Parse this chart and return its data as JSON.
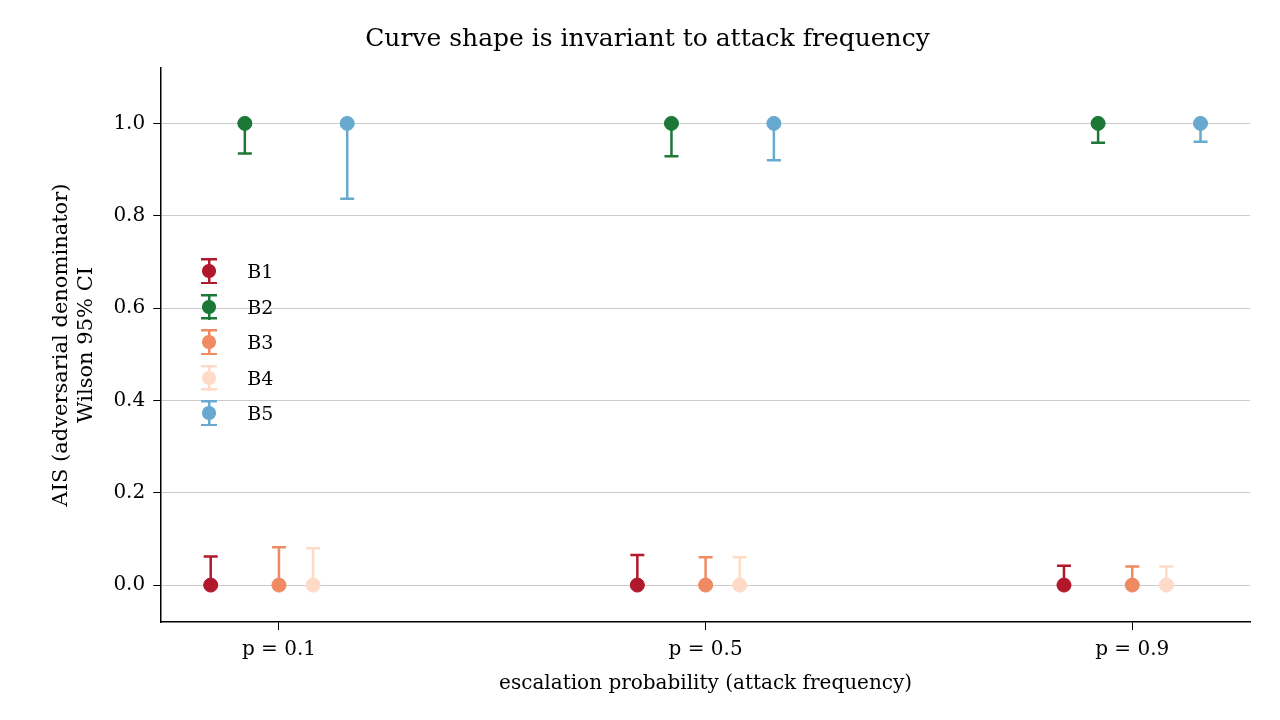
{
  "chart_data": {
    "type": "scatter",
    "title": "Curve shape is invariant to attack frequency",
    "xlabel": "escalation probability (attack frequency)",
    "ylabel": "AIS (adversarial denominator)\nWilson 95% CI",
    "categories": [
      "p = 0.1",
      "p = 0.5",
      "p = 0.9"
    ],
    "series": [
      {
        "name": "B1",
        "color": "#b2182b",
        "values": [
          0,
          0,
          0
        ],
        "errors": [
          [
            0,
            0.062
          ],
          [
            0,
            0.065
          ],
          [
            0,
            0.042
          ]
        ]
      },
      {
        "name": "B2",
        "color": "#1b7837",
        "values": [
          1,
          1,
          1
        ],
        "errors": [
          [
            0.935,
            1
          ],
          [
            0.929,
            1
          ],
          [
            0.958,
            1
          ]
        ]
      },
      {
        "name": "B3",
        "color": "#ef8a62",
        "values": [
          0,
          0,
          0
        ],
        "errors": [
          [
            0,
            0.082
          ],
          [
            0,
            0.06
          ],
          [
            0,
            0.04
          ]
        ]
      },
      {
        "name": "B4",
        "color": "#fddbc7",
        "values": [
          0,
          0,
          0
        ],
        "errors": [
          [
            0,
            0.08
          ],
          [
            0,
            0.06
          ],
          [
            0,
            0.04
          ]
        ]
      },
      {
        "name": "B5",
        "color": "#67a9cf",
        "values": [
          1,
          1,
          1
        ],
        "errors": [
          [
            0.837,
            1
          ],
          [
            0.92,
            1
          ],
          [
            0.96,
            1
          ]
        ]
      }
    ],
    "ylim": [
      -0.08,
      1.12
    ],
    "yticks": [
      {
        "value": 0,
        "label": "0.0"
      },
      0.2,
      0.4,
      0.6,
      0.8,
      {
        "value": 1,
        "label": "1.0"
      }
    ],
    "grid": "y",
    "legend": "center left",
    "marker": "circle"
  }
}
